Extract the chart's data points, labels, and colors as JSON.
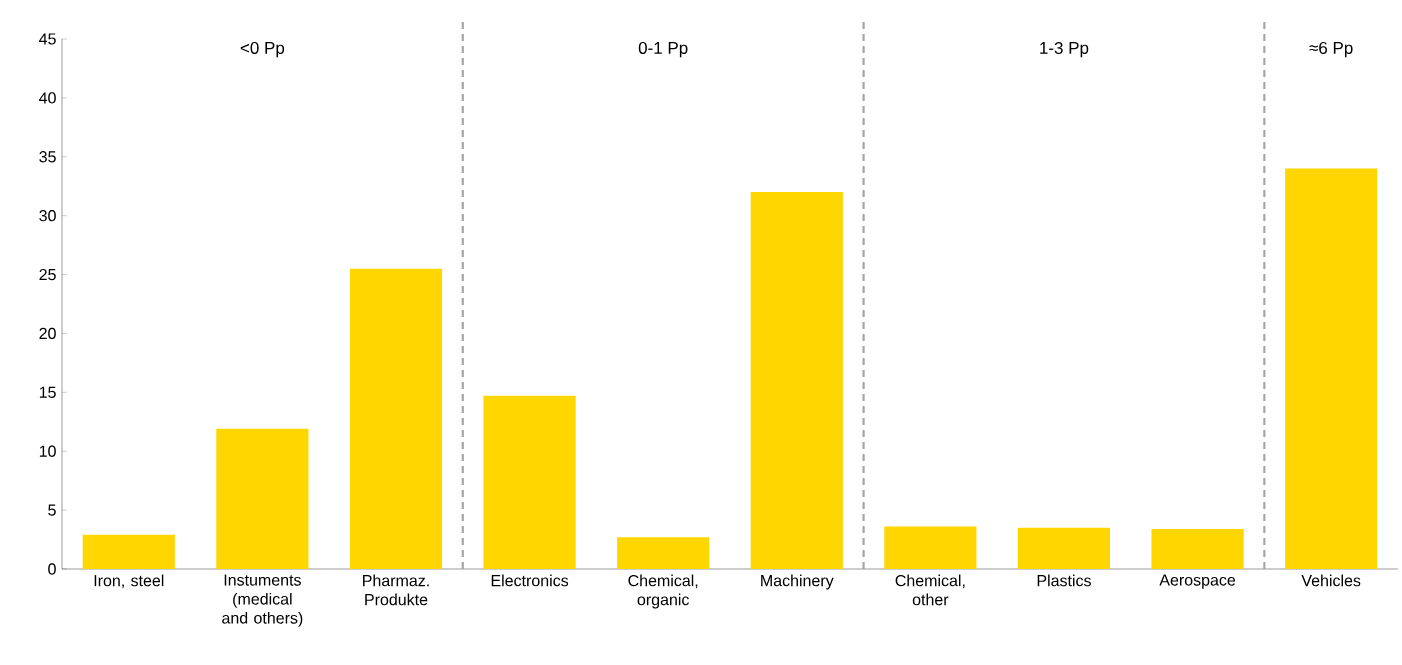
{
  "chart_data": {
    "type": "bar",
    "categories": [
      "Iron, steel",
      "Instuments (medical and others)",
      "Pharmaz. Produkte",
      "Electronics",
      "Chemical, organic",
      "Machinery",
      "Chemical, other",
      "Plastics",
      "Aerospace",
      "Vehicles"
    ],
    "values": [
      2.9,
      11.9,
      25.5,
      14.7,
      2.7,
      32.0,
      3.6,
      3.5,
      3.4,
      34.0
    ],
    "color": "#ffd600",
    "ylim": [
      0,
      45
    ],
    "yticks": [
      0,
      5,
      10,
      15,
      20,
      25,
      30,
      35,
      40,
      45
    ],
    "grid": false,
    "annotations": [
      "<0 Pp",
      "0-1 Pp",
      "1-3 Pp",
      "≈6 Pp"
    ]
  }
}
